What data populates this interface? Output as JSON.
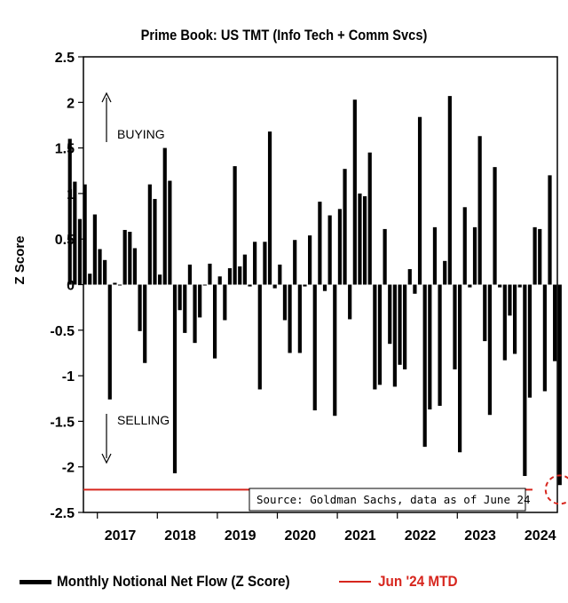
{
  "chart_data": {
    "type": "bar",
    "title": "Prime Book: US TMT (Info Tech + Comm Svcs)",
    "xlabel": "",
    "ylabel": "Z Score",
    "ylim": [
      -2.5,
      2.5
    ],
    "yticks": [
      "2.5",
      "2",
      "1.5",
      "1",
      "0.5",
      "0",
      "-0.5",
      "-1",
      "-1.5",
      "-2",
      "-2.5"
    ],
    "xticks": [
      "2017",
      "2018",
      "2019",
      "2020",
      "2021",
      "2022",
      "2023",
      "2024"
    ],
    "x_start": "2016-07",
    "x_end": "2024-06",
    "series": [
      {
        "name": "Monthly Notional Net Flow (Z Score)",
        "color": "#000000",
        "values": [
          1.6,
          1.13,
          0.72,
          1.1,
          0.12,
          0.77,
          0.39,
          0.27,
          -1.26,
          0.02,
          0.0,
          0.6,
          0.58,
          0.4,
          -0.51,
          -0.86,
          1.1,
          0.94,
          0.11,
          1.5,
          1.14,
          -2.07,
          -0.28,
          -0.53,
          0.22,
          -0.64,
          -0.36,
          0.0,
          0.23,
          -0.81,
          0.09,
          -0.39,
          0.18,
          1.3,
          0.2,
          0.33,
          -0.02,
          0.47,
          -1.15,
          0.47,
          1.68,
          -0.04,
          0.22,
          -0.39,
          -0.75,
          0.49,
          -0.75,
          -0.02,
          0.54,
          -1.38,
          0.91,
          -0.07,
          0.76,
          -1.44,
          0.83,
          1.27,
          -0.38,
          2.03,
          1.0,
          0.97,
          1.45,
          -1.15,
          -1.1,
          0.61,
          -0.65,
          -1.12,
          -0.88,
          -0.93,
          0.17,
          -0.1,
          1.84,
          -1.78,
          -1.37,
          0.63,
          -1.33,
          0.26,
          2.07,
          -0.93,
          -1.84,
          0.85,
          -0.03,
          0.63,
          1.63,
          -0.62,
          -1.43,
          1.29,
          -0.03,
          -0.83,
          -0.34,
          -0.76,
          -0.03,
          -2.1,
          -1.24,
          0.63,
          0.61,
          -1.17,
          1.2,
          -0.84,
          -2.2
        ]
      }
    ],
    "reference_line": {
      "name": "Jun '24 MTD",
      "value": -2.25,
      "color": "#d7261e"
    },
    "grid": false,
    "legend": "bottom",
    "annotations": {
      "buying": "BUYING",
      "selling": "SELLING",
      "source": "Source: Goldman Sachs, data as of June 24"
    }
  }
}
